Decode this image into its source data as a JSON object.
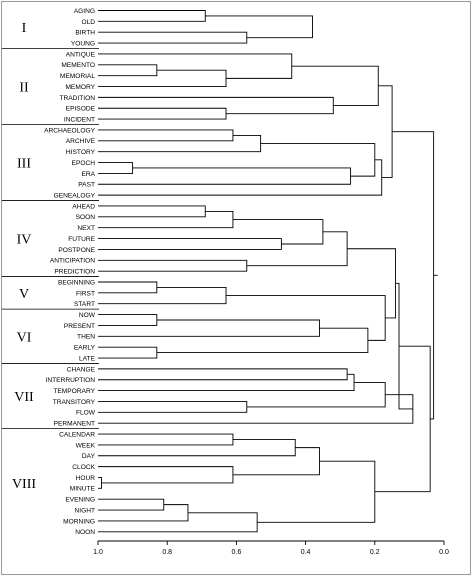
{
  "leaves": [
    "AGING",
    "OLD",
    "BIRTH",
    "YOUNG",
    "ANTIQUE",
    "MEMENTO",
    "MEMORIAL",
    "MEMORY",
    "TRADITION",
    "EPISODE",
    "INCIDENT",
    "ARCHAEOLOGY",
    "ARCHIVE",
    "HISTORY",
    "EPOCH",
    "ERA",
    "PAST",
    "GENEALOGY",
    "AHEAD",
    "SOON",
    "NEXT",
    "FUTURE",
    "POSTPONE",
    "ANTICIPATION",
    "PREDICTION",
    "BEGINNING",
    "FIRST",
    "START",
    "NOW",
    "PRESENT",
    "THEN",
    "EARLY",
    "LATE",
    "CHANGE",
    "INTERRUPTION",
    "TEMPORARY",
    "TRANSITORY",
    "FLOW",
    "PERMANENT",
    "CALENDAR",
    "WEEK",
    "DAY",
    "CLOCK",
    "HOUR",
    "MINUTE",
    "EVENING",
    "NIGHT",
    "MORNING",
    "NOON"
  ],
  "groups": [
    {
      "label": "I",
      "first": 0,
      "last": 3
    },
    {
      "label": "II",
      "first": 4,
      "last": 10
    },
    {
      "label": "III",
      "first": 11,
      "last": 17
    },
    {
      "label": "IV",
      "first": 18,
      "last": 24
    },
    {
      "label": "V",
      "first": 25,
      "last": 27
    },
    {
      "label": "VI",
      "first": 28,
      "last": 32
    },
    {
      "label": "VII",
      "first": 33,
      "last": 38
    },
    {
      "label": "VIII",
      "first": 39,
      "last": 48
    }
  ],
  "axis": {
    "ticks": [
      "1.0",
      "0.8",
      "0.6",
      "0.4",
      "0.2",
      "0.0"
    ],
    "tick_values": [
      1.0,
      0.8,
      0.6,
      0.4,
      0.2,
      0.0
    ]
  },
  "merges": [
    {
      "a": "L0",
      "b": "L1",
      "h": 0.69
    },
    {
      "a": "L2",
      "b": "L3",
      "h": 0.57
    },
    {
      "a": "M0",
      "b": "M1",
      "h": 0.38
    },
    {
      "a": "L5",
      "b": "L6",
      "h": 0.83
    },
    {
      "a": "M3",
      "b": "L7",
      "h": 0.63
    },
    {
      "a": "L4",
      "b": "M4",
      "h": 0.44
    },
    {
      "a": "L9",
      "b": "L10",
      "h": 0.63
    },
    {
      "a": "L8",
      "b": "M6",
      "h": 0.32
    },
    {
      "a": "M5",
      "b": "M7",
      "h": 0.19
    },
    {
      "a": "L11",
      "b": "L12",
      "h": 0.61
    },
    {
      "a": "M9",
      "b": "L13",
      "h": 0.53
    },
    {
      "a": "L14",
      "b": "L15",
      "h": 0.9
    },
    {
      "a": "M11",
      "b": "L16",
      "h": 0.27
    },
    {
      "a": "M10",
      "b": "M12",
      "h": 0.2
    },
    {
      "a": "M13",
      "b": "L17",
      "h": 0.18
    },
    {
      "a": "M8",
      "b": "M14",
      "h": 0.15
    },
    {
      "a": "L18",
      "b": "L19",
      "h": 0.69
    },
    {
      "a": "M16",
      "b": "L20",
      "h": 0.61
    },
    {
      "a": "L21",
      "b": "L22",
      "h": 0.47
    },
    {
      "a": "M17",
      "b": "M18",
      "h": 0.35
    },
    {
      "a": "L23",
      "b": "L24",
      "h": 0.57
    },
    {
      "a": "M19",
      "b": "M20",
      "h": 0.28
    },
    {
      "a": "L25",
      "b": "L26",
      "h": 0.83
    },
    {
      "a": "M22",
      "b": "L27",
      "h": 0.63
    },
    {
      "a": "L28",
      "b": "L29",
      "h": 0.83
    },
    {
      "a": "M24",
      "b": "L30",
      "h": 0.36
    },
    {
      "a": "L31",
      "b": "L32",
      "h": 0.83
    },
    {
      "a": "M25",
      "b": "M26",
      "h": 0.22
    },
    {
      "a": "M23",
      "b": "M27",
      "h": 0.17
    },
    {
      "a": "M21",
      "b": "M28",
      "h": 0.14
    },
    {
      "a": "L33",
      "b": "L34",
      "h": 0.28
    },
    {
      "a": "M30",
      "b": "L35",
      "h": 0.26
    },
    {
      "a": "L36",
      "b": "L37",
      "h": 0.57
    },
    {
      "a": "M31",
      "b": "M32",
      "h": 0.17
    },
    {
      "a": "M33",
      "b": "L38",
      "h": 0.09
    },
    {
      "a": "M29",
      "b": "M34",
      "h": 0.13
    },
    {
      "a": "L39",
      "b": "L40",
      "h": 0.61
    },
    {
      "a": "M36",
      "b": "L41",
      "h": 0.43
    },
    {
      "a": "L43",
      "b": "L44",
      "h": 0.99
    },
    {
      "a": "L42",
      "b": "M38",
      "h": 0.61
    },
    {
      "a": "M37",
      "b": "M39",
      "h": 0.36
    },
    {
      "a": "L45",
      "b": "L46",
      "h": 0.81
    },
    {
      "a": "M41",
      "b": "L47",
      "h": 0.74
    },
    {
      "a": "M42",
      "b": "L48",
      "h": 0.54
    },
    {
      "a": "M40",
      "b": "M43",
      "h": 0.2
    },
    {
      "a": "M35",
      "b": "M44",
      "h": 0.04
    },
    {
      "a": "M15",
      "b": "M45",
      "h": 0.03
    }
  ]
}
